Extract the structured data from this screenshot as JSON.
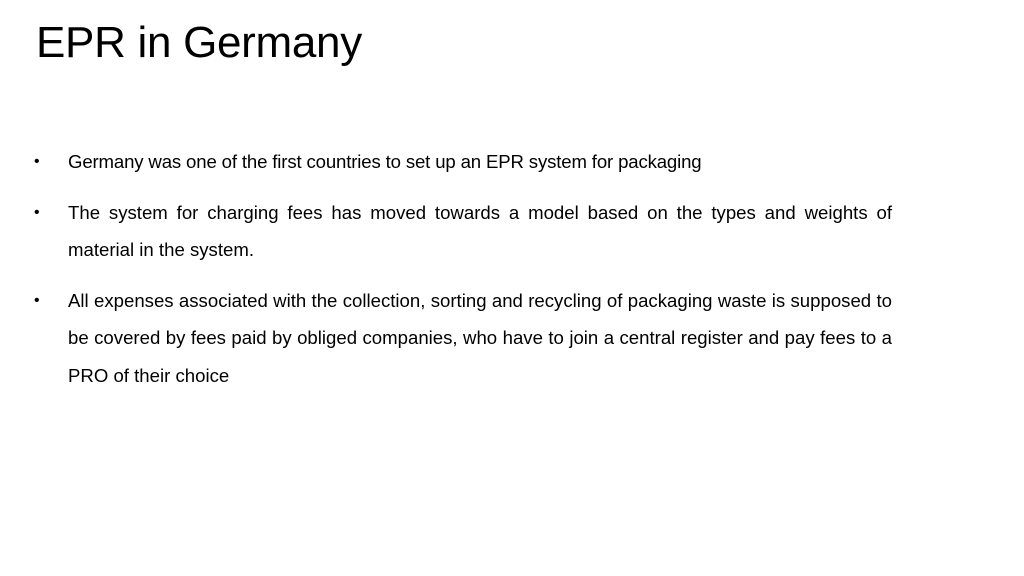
{
  "slide": {
    "title": "EPR in Germany",
    "bullet_symbol": "•",
    "bullets": [
      {
        "text": "Germany was one of the first countries to set up an EPR system for packaging"
      },
      {
        "text": "The system for charging fees has moved towards a model based on the types and weights of material in the system."
      },
      {
        "text": "All expenses associated with the collection, sorting and recycling of packaging waste is supposed to be covered by fees paid by obliged companies, who have to join a central register and pay fees to a PRO of their choice"
      }
    ]
  },
  "colors": {
    "background": "#ffffff",
    "text": "#000000"
  }
}
